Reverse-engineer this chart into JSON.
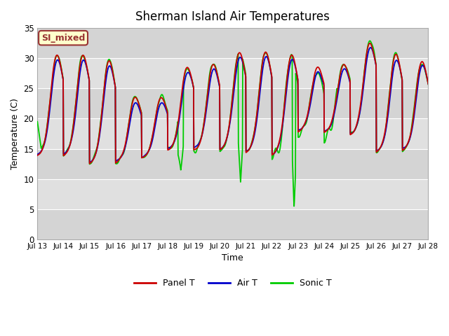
{
  "title": "Sherman Island Air Temperatures",
  "xlabel": "Time",
  "ylabel": "Temperature (C)",
  "ylim": [
    0,
    35
  ],
  "yticks": [
    0,
    5,
    10,
    15,
    20,
    25,
    30,
    35
  ],
  "xtick_labels": [
    "Jul 13",
    "Jul 14",
    "Jul 15",
    "Jul 16",
    "Jul 17",
    "Jul 18",
    "Jul 19",
    "Jul 20",
    "Jul 21",
    "Jul 22",
    "Jul 23",
    "Jul 24",
    "Jul 25",
    "Jul 26",
    "Jul 27",
    "Jul 28"
  ],
  "colors": {
    "panel_t": "#cc0000",
    "air_t": "#0000cc",
    "sonic_t": "#00cc00"
  },
  "label_box": {
    "text": "SI_mixed",
    "facecolor": "#ffffcc",
    "edgecolor": "#993333",
    "textcolor": "#993333"
  },
  "legend_labels": [
    "Panel T",
    "Air T",
    "Sonic T"
  ],
  "background_color": "#ffffff",
  "plot_bg_color": "#e8e8e8",
  "band_light_color": "#d8d8d8",
  "band_dark_color": "#c8c8c8",
  "grid_line_color": "#ffffff",
  "linewidth": 1.3,
  "title_fontsize": 12
}
